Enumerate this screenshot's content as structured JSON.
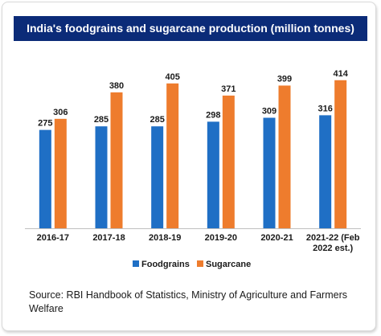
{
  "title": "India's foodgrains and sugarcane production (million tonnes)",
  "source": "Source: RBI Handbook of Statistics, Ministry of Agriculture and Farmers Welfare",
  "colors": {
    "title_bg": "#0b2b78",
    "foodgrains": "#1f6fc5",
    "sugarcane": "#ee7c2d"
  },
  "chart_data": {
    "type": "bar",
    "categories": [
      "2016-17",
      "2017-18",
      "2018-19",
      "2019-20",
      "2020-21",
      "2021-22 (Feb 2022 est.)"
    ],
    "series": [
      {
        "name": "Foodgrains",
        "values": [
          275,
          285,
          285,
          298,
          309,
          316
        ]
      },
      {
        "name": "Sugarcane",
        "values": [
          306,
          380,
          405,
          371,
          399,
          414
        ]
      }
    ],
    "ylim": [
      0,
      450
    ],
    "grid": false,
    "legend": "bottom-center"
  }
}
